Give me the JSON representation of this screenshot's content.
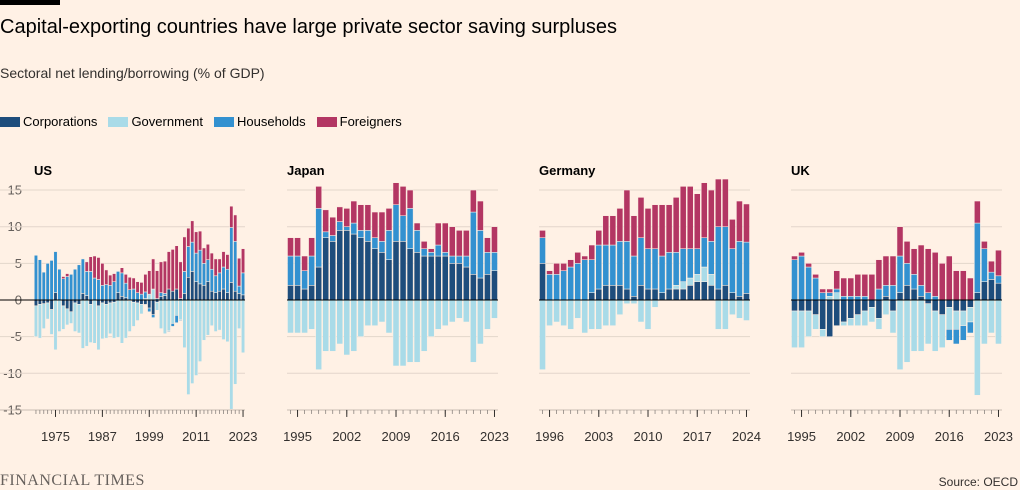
{
  "header": {
    "title": "Capital-exporting countries have large private sector saving surpluses",
    "subtitle": "Sectoral net lending/borrowing (% of GDP)"
  },
  "footer": {
    "brand": "FINANCIAL TIMES",
    "source": "Source: OECD"
  },
  "colors": {
    "background": "#fff1e5",
    "corporations": "#1e4d7c",
    "government": "#a9dbe8",
    "households": "#3391d0",
    "foreigners": "#b33663",
    "gridline": "#e3d6cb",
    "zero_line": "#000000"
  },
  "chart_data": [
    {
      "type": "bar",
      "stacked": true,
      "title": "US",
      "x": [
        1970,
        1971,
        1972,
        1973,
        1974,
        1975,
        1976,
        1977,
        1978,
        1979,
        1980,
        1981,
        1982,
        1983,
        1984,
        1985,
        1986,
        1987,
        1988,
        1989,
        1990,
        1991,
        1992,
        1993,
        1994,
        1995,
        1996,
        1997,
        1998,
        1999,
        2000,
        2001,
        2002,
        2003,
        2004,
        2005,
        2006,
        2007,
        2008,
        2009,
        2010,
        2011,
        2012,
        2013,
        2014,
        2015,
        2016,
        2017,
        2018,
        2019,
        2020,
        2021,
        2022,
        2023
      ],
      "x_tick_labels": [
        "1975",
        "1987",
        "1999",
        "2011",
        "2023"
      ],
      "y_ticks": [
        15,
        10,
        5,
        0,
        -5,
        -10,
        -15
      ],
      "ylim": [
        -15,
        15
      ],
      "series": [
        {
          "name": "Corporations",
          "values": [
            -0.8,
            -0.6,
            -0.5,
            -0.4,
            -1.3,
            1.0,
            0.0,
            -0.8,
            -1.2,
            -1.6,
            -0.4,
            -0.6,
            0.9,
            0.6,
            -0.6,
            0.0,
            -0.8,
            -0.4,
            -0.6,
            -0.4,
            -0.3,
            1.0,
            0.5,
            0.3,
            -0.1,
            -0.3,
            -0.4,
            -0.6,
            -0.6,
            -1.1,
            -2.0,
            -0.3,
            0.5,
            0.6,
            1.5,
            1.2,
            1.5,
            0.2,
            0.9,
            3.1,
            3.9,
            2.5,
            2.2,
            2.0,
            2.5,
            1.2,
            1.0,
            1.2,
            1.5,
            1.0,
            2.4,
            1.2,
            0.9,
            0.7
          ]
        },
        {
          "name": "Government",
          "values": [
            -4.2,
            -4.6,
            -3.4,
            -2.2,
            -3.4,
            -6.8,
            -4.3,
            -3.2,
            -2.2,
            -1.6,
            -3.9,
            -3.9,
            -6.6,
            -6.3,
            -5.2,
            -5.9,
            -6.0,
            -4.9,
            -4.6,
            -4.2,
            -4.9,
            -5.1,
            -5.9,
            -5.2,
            -4.2,
            -3.3,
            -2.4,
            -1.3,
            0.2,
            0.8,
            1.5,
            -1.1,
            -3.9,
            -4.6,
            -4.2,
            -3.2,
            -2.1,
            -2.7,
            -6.5,
            -12.9,
            -11.4,
            -10.3,
            -8.4,
            -5.5,
            -4.8,
            -3.5,
            -4.3,
            -4.1,
            -5.4,
            -5.7,
            -14.9,
            -11.5,
            -3.9,
            -7.2
          ]
        },
        {
          "name": "Households",
          "values": [
            6.1,
            5.5,
            3.8,
            5.0,
            5.4,
            5.6,
            4.2,
            2.9,
            3.2,
            3.5,
            4.2,
            4.8,
            4.7,
            3.3,
            3.9,
            3.0,
            2.8,
            2.0,
            2.1,
            2.0,
            2.5,
            2.9,
            3.2,
            2.0,
            1.4,
            1.5,
            1.0,
            0.8,
            0.9,
            -0.5,
            -0.4,
            0.2,
            0.5,
            0.3,
            -0.1,
            -0.4,
            -1.0,
            -0.1,
            3.0,
            4.2,
            4.0,
            3.9,
            4.6,
            3.0,
            3.0,
            3.0,
            2.3,
            2.5,
            3.0,
            3.2,
            7.5,
            6.8,
            1.0,
            3.0
          ]
        },
        {
          "name": "Foreigners",
          "values": [
            0.0,
            0.0,
            0.0,
            0.0,
            0.0,
            0.0,
            0.0,
            0.3,
            0.4,
            0.0,
            0.0,
            0.0,
            0.0,
            1.3,
            2.0,
            3.0,
            3.0,
            3.0,
            2.0,
            1.4,
            1.1,
            0.0,
            0.7,
            1.2,
            1.7,
            1.5,
            1.5,
            1.6,
            2.4,
            3.2,
            4.1,
            3.8,
            4.2,
            4.4,
            5.1,
            5.7,
            5.9,
            5.0,
            4.7,
            2.5,
            2.9,
            2.9,
            2.6,
            2.1,
            2.1,
            2.2,
            2.3,
            1.9,
            2.1,
            2.0,
            2.9,
            3.6,
            3.8,
            3.3
          ]
        }
      ]
    },
    {
      "type": "bar",
      "stacked": true,
      "title": "Japan",
      "x": [
        1994,
        1995,
        1996,
        1997,
        1998,
        1999,
        2000,
        2001,
        2002,
        2003,
        2004,
        2005,
        2006,
        2007,
        2008,
        2009,
        2010,
        2011,
        2012,
        2013,
        2014,
        2015,
        2016,
        2017,
        2018,
        2019,
        2020,
        2021,
        2022,
        2023
      ],
      "x_tick_labels": [
        "1995",
        "2002",
        "2009",
        "2016",
        "2023"
      ],
      "y_ticks": [
        15,
        10,
        5,
        0,
        -5,
        -10,
        -15
      ],
      "ylim": [
        -15,
        15
      ],
      "series": [
        {
          "name": "Corporations",
          "values": [
            2.0,
            2.0,
            1.5,
            2.0,
            4.5,
            8.5,
            8.0,
            9.5,
            9.5,
            9.0,
            8.5,
            8.0,
            7.0,
            6.5,
            5.5,
            8.0,
            8.0,
            7.0,
            6.5,
            6.0,
            6.0,
            6.0,
            6.0,
            5.0,
            5.0,
            4.5,
            3.5,
            3.0,
            3.5,
            4.0
          ]
        },
        {
          "name": "Government",
          "values": [
            -4.5,
            -4.5,
            -4.5,
            -4.0,
            -9.5,
            -7.0,
            -7.0,
            -6.0,
            -7.5,
            -7.0,
            -5.0,
            -3.5,
            -3.5,
            -3.0,
            -4.5,
            -9.0,
            -9.0,
            -8.5,
            -8.5,
            -7.0,
            -5.0,
            -4.0,
            -3.5,
            -3.0,
            -2.5,
            -3.0,
            -8.5,
            -6.0,
            -4.0,
            -2.5
          ]
        },
        {
          "name": "Households",
          "values": [
            4.0,
            4.0,
            2.5,
            4.0,
            8.0,
            0.8,
            0.8,
            1.2,
            0.5,
            1.5,
            1.0,
            1.5,
            1.5,
            1.5,
            4.0,
            5.0,
            3.5,
            5.5,
            3.0,
            1.0,
            0.5,
            1.5,
            0.5,
            1.0,
            1.0,
            1.5,
            8.5,
            6.5,
            3.0,
            2.5
          ]
        },
        {
          "name": "Foreigners",
          "values": [
            2.5,
            2.5,
            2.0,
            2.5,
            3.0,
            3.0,
            2.5,
            2.0,
            2.5,
            3.0,
            3.5,
            3.5,
            3.5,
            4.0,
            3.0,
            3.0,
            4.0,
            2.5,
            1.0,
            1.0,
            0.5,
            3.0,
            4.0,
            4.0,
            3.5,
            3.5,
            3.0,
            4.0,
            2.0,
            3.5
          ]
        }
      ]
    },
    {
      "type": "bar",
      "stacked": true,
      "title": "Germany",
      "x": [
        1995,
        1996,
        1997,
        1998,
        1999,
        2000,
        2001,
        2002,
        2003,
        2004,
        2005,
        2006,
        2007,
        2008,
        2009,
        2010,
        2011,
        2012,
        2013,
        2014,
        2015,
        2016,
        2017,
        2018,
        2019,
        2020,
        2021,
        2022,
        2023,
        2024
      ],
      "x_tick_labels": [
        "1996",
        "2003",
        "2010",
        "2017",
        "2024"
      ],
      "y_ticks": [
        15,
        10,
        5,
        0,
        -5,
        -10,
        -15
      ],
      "ylim": [
        -15,
        15
      ],
      "series": [
        {
          "name": "Corporations",
          "values": [
            5.0,
            0.0,
            0.0,
            0.0,
            0.0,
            0.0,
            0.0,
            1.0,
            1.5,
            2.0,
            2.0,
            2.0,
            1.5,
            0.5,
            2.0,
            1.5,
            1.5,
            1.0,
            1.5,
            1.5,
            1.5,
            2.0,
            2.5,
            2.5,
            2.0,
            1.5,
            2.0,
            1.0,
            0.5,
            0.9
          ]
        },
        {
          "name": "Government",
          "values": [
            -9.5,
            -3.5,
            -3.0,
            -3.5,
            -4.0,
            -2.5,
            -4.5,
            -4.0,
            -4.0,
            -3.5,
            -3.5,
            -2.0,
            -0.5,
            -0.5,
            -3.0,
            -4.0,
            -1.0,
            0.0,
            0.0,
            0.5,
            1.0,
            1.0,
            1.0,
            2.0,
            1.5,
            -4.0,
            -4.0,
            -2.0,
            -2.5,
            -2.8
          ]
        },
        {
          "name": "Households",
          "values": [
            3.5,
            3.5,
            3.5,
            4.0,
            4.5,
            5.0,
            5.5,
            4.5,
            6.0,
            5.5,
            5.5,
            6.0,
            6.5,
            5.5,
            6.5,
            5.5,
            5.5,
            5.0,
            5.0,
            4.5,
            4.5,
            4.0,
            3.5,
            4.0,
            4.5,
            8.5,
            8.0,
            6.0,
            7.5,
            7.0
          ]
        },
        {
          "name": "Foreigners",
          "values": [
            1.0,
            0.5,
            1.5,
            1.0,
            1.0,
            1.5,
            0.5,
            2.0,
            2.0,
            4.0,
            4.0,
            4.5,
            7.0,
            5.5,
            5.5,
            5.5,
            6.0,
            7.0,
            6.5,
            7.5,
            8.5,
            8.5,
            7.5,
            7.5,
            7.0,
            6.5,
            6.5,
            4.0,
            5.5,
            5.2
          ]
        }
      ]
    },
    {
      "type": "bar",
      "stacked": true,
      "title": "UK",
      "x": [
        1994,
        1995,
        1996,
        1997,
        1998,
        1999,
        2000,
        2001,
        2002,
        2003,
        2004,
        2005,
        2006,
        2007,
        2008,
        2009,
        2010,
        2011,
        2012,
        2013,
        2014,
        2015,
        2016,
        2017,
        2018,
        2019,
        2020,
        2021,
        2022,
        2023
      ],
      "x_tick_labels": [
        "1995",
        "2002",
        "2009",
        "2016",
        "2023"
      ],
      "y_ticks": [
        15,
        10,
        5,
        0,
        -5,
        -10,
        -15
      ],
      "ylim": [
        -15,
        15
      ],
      "series": [
        {
          "name": "Corporations",
          "values": [
            -1.5,
            -1.5,
            -1.5,
            -2.0,
            -4.0,
            -5.0,
            -3.5,
            -3.0,
            -2.5,
            -2.0,
            -1.5,
            -1.0,
            -2.5,
            0.5,
            -1.5,
            1.0,
            2.0,
            1.5,
            0.5,
            -0.5,
            -1.5,
            -2.0,
            -1.0,
            -1.5,
            -1.5,
            -1.0,
            1.0,
            2.5,
            2.8,
            2.3
          ]
        },
        {
          "name": "Government",
          "values": [
            -5.0,
            -5.0,
            -3.5,
            -2.0,
            -1.0,
            0.5,
            1.0,
            -0.5,
            -1.0,
            -1.5,
            -2.0,
            -2.0,
            -1.5,
            -2.0,
            -3.0,
            -9.5,
            -8.5,
            -7.0,
            -7.0,
            -5.5,
            -5.5,
            -4.5,
            -3.0,
            -2.5,
            -2.0,
            -2.0,
            -13.0,
            -6.0,
            -4.5,
            -6.0
          ]
        },
        {
          "name": "Households",
          "values": [
            5.5,
            6.0,
            4.5,
            3.0,
            1.0,
            0.5,
            0.5,
            0.5,
            0.5,
            0.5,
            0.5,
            0.0,
            1.5,
            1.5,
            2.0,
            5.0,
            3.0,
            2.0,
            1.5,
            1.0,
            0.5,
            0.0,
            -1.5,
            -2.0,
            -2.0,
            -1.5,
            9.5,
            4.5,
            1.0,
            1.0
          ]
        },
        {
          "name": "Foreigners",
          "values": [
            0.5,
            0.5,
            0.5,
            0.5,
            0.5,
            0.5,
            2.5,
            2.5,
            2.5,
            3.0,
            3.0,
            3.5,
            4.0,
            4.0,
            4.0,
            4.0,
            3.0,
            3.5,
            5.5,
            6.0,
            6.0,
            5.0,
            6.0,
            4.0,
            4.0,
            3.0,
            3.0,
            1.0,
            1.5,
            3.5
          ]
        }
      ]
    }
  ]
}
